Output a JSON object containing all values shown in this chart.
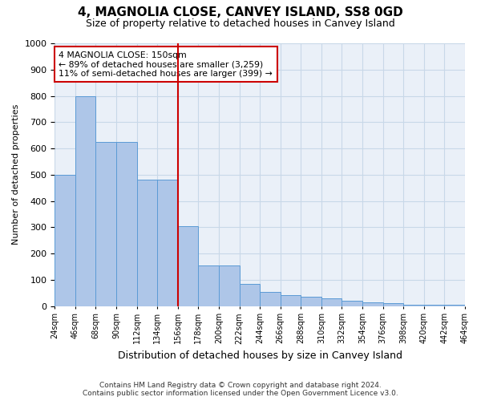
{
  "title": "4, MAGNOLIA CLOSE, CANVEY ISLAND, SS8 0GD",
  "subtitle": "Size of property relative to detached houses in Canvey Island",
  "xlabel": "Distribution of detached houses by size in Canvey Island",
  "ylabel": "Number of detached properties",
  "footer_line1": "Contains HM Land Registry data © Crown copyright and database right 2024.",
  "footer_line2": "Contains public sector information licensed under the Open Government Licence v3.0.",
  "bin_labels": [
    "24sqm",
    "46sqm",
    "68sqm",
    "90sqm",
    "112sqm",
    "134sqm",
    "156sqm",
    "178sqm",
    "200sqm",
    "222sqm",
    "244sqm",
    "266sqm",
    "288sqm",
    "310sqm",
    "332sqm",
    "354sqm",
    "376sqm",
    "398sqm",
    "420sqm",
    "442sqm",
    "464sqm"
  ],
  "bar_values": [
    500,
    800,
    625,
    625,
    480,
    480,
    305,
    155,
    155,
    85,
    55,
    40,
    35,
    30,
    20,
    15,
    10,
    5,
    5,
    5
  ],
  "bar_color": "#AEC6E8",
  "bar_edge_color": "#5B9BD5",
  "grid_color": "#C8D8E8",
  "background_color": "#EAF0F8",
  "red_line_bin": 6,
  "red_line_color": "#CC0000",
  "annotation_text": "4 MAGNOLIA CLOSE: 150sqm\n← 89% of detached houses are smaller (3,259)\n11% of semi-detached houses are larger (399) →",
  "annotation_box_color": "white",
  "annotation_box_edge": "#CC0000",
  "ylim": [
    0,
    1000
  ],
  "yticks": [
    0,
    100,
    200,
    300,
    400,
    500,
    600,
    700,
    800,
    900,
    1000
  ]
}
